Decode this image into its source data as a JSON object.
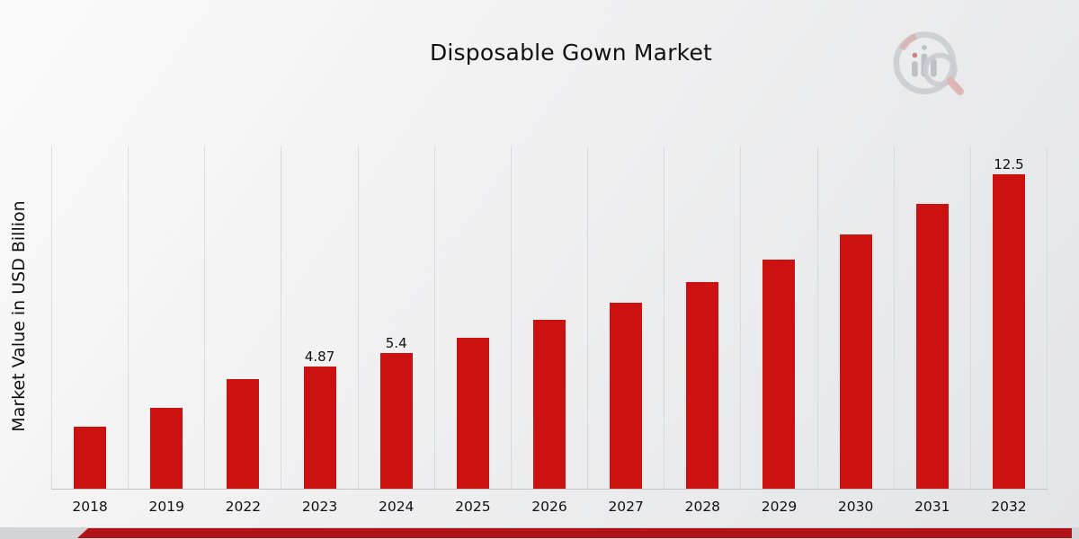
{
  "chart_data": {
    "type": "bar",
    "title": "Disposable Gown Market",
    "ylabel": "Market Value in USD Billion",
    "xlabel": "",
    "categories": [
      "2018",
      "2019",
      "2022",
      "2023",
      "2024",
      "2025",
      "2026",
      "2027",
      "2028",
      "2029",
      "2030",
      "2031",
      "2032"
    ],
    "values": [
      2.45,
      3.2,
      4.35,
      4.87,
      5.4,
      6.0,
      6.7,
      7.4,
      8.2,
      9.1,
      10.1,
      11.3,
      12.5
    ],
    "bar_labels": [
      "",
      "",
      "",
      "4.87",
      "5.4",
      "",
      "",
      "",
      "",
      "",
      "",
      "",
      "12.5"
    ],
    "ylim": [
      0,
      13.6
    ],
    "grid": "vertical-gridlines",
    "legend": "none",
    "series_name": "Disposable Gown Market Value"
  },
  "colors": {
    "bar": "#cc1111",
    "bottom_bar": "#b01419",
    "grid": "#d9dadb",
    "baseline": "#c2c3c5",
    "title_text": "#111111",
    "tick_text": "#111111"
  },
  "branding": {
    "logo": "bar-chart-magnifier-logo"
  }
}
